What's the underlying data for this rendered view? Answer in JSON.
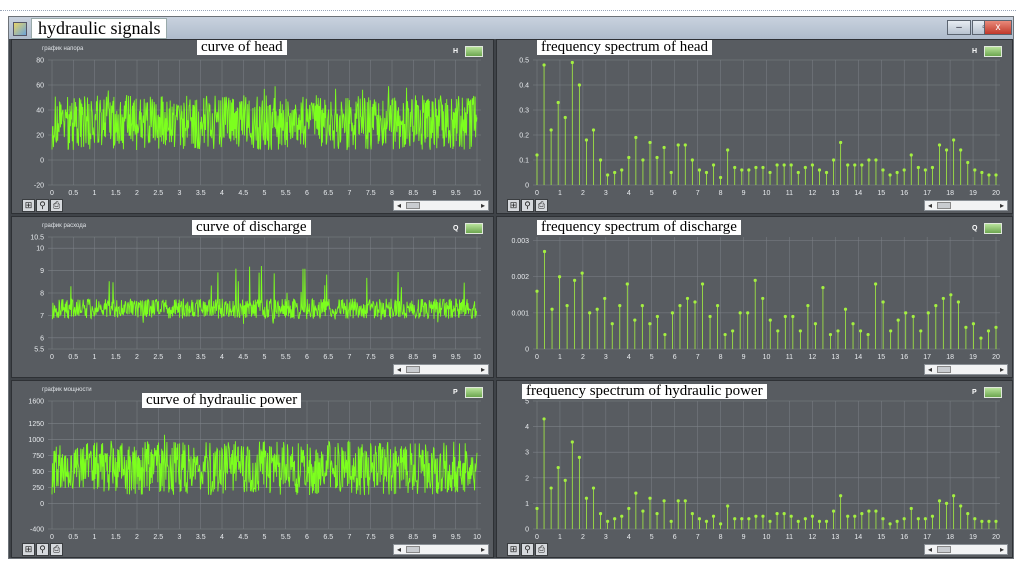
{
  "window": {
    "title": "hydraulic signals",
    "controls": [
      "–",
      "▫",
      "x"
    ]
  },
  "panels": [
    {
      "id": "head-curve",
      "overlay_title": "curve of head",
      "small_title": "график напора",
      "legend_symbol": "H",
      "kind": "signal",
      "y_ticks": [
        "80",
        "60",
        "40",
        "20",
        "0",
        "-20"
      ],
      "y_values": [
        80,
        60,
        40,
        20,
        0,
        -20
      ],
      "x_ticks": [
        "0",
        "0.5",
        "1",
        "1.5",
        "2",
        "2.5",
        "3",
        "3.5",
        "4",
        "4.5",
        "5",
        "5.5",
        "6",
        "6.5",
        "7",
        "7.5",
        "8",
        "8.5",
        "9",
        "9.5",
        "10"
      ],
      "signal": {
        "mean": 30,
        "amp": 22,
        "spike": 42,
        "min": -20,
        "max": 80
      },
      "has_toolbar": true
    },
    {
      "id": "head-spectrum",
      "overlay_title": "frequency spectrum of head",
      "small_title": "",
      "legend_symbol": "H",
      "kind": "spectrum",
      "y_ticks": [
        "0.5",
        "0.4",
        "0.3",
        "0.2",
        "0.1",
        "0"
      ],
      "y_values": [
        0.5,
        0.4,
        0.3,
        0.2,
        0.1,
        0
      ],
      "x_ticks": [
        "0",
        "1",
        "2",
        "3",
        "4",
        "5",
        "6",
        "7",
        "8",
        "9",
        "10",
        "11",
        "12",
        "13",
        "14",
        "15",
        "16",
        "17",
        "18",
        "19",
        "20"
      ],
      "stems": [
        0.12,
        0.48,
        0.22,
        0.33,
        0.27,
        0.49,
        0.4,
        0.18,
        0.22,
        0.1,
        0.04,
        0.05,
        0.06,
        0.11,
        0.19,
        0.1,
        0.17,
        0.11,
        0.15,
        0.05,
        0.16,
        0.16,
        0.1,
        0.06,
        0.05,
        0.08,
        0.03,
        0.14,
        0.07,
        0.06,
        0.06,
        0.07,
        0.07,
        0.05,
        0.08,
        0.08,
        0.08,
        0.05,
        0.07,
        0.08,
        0.06,
        0.05,
        0.1,
        0.17,
        0.08,
        0.08,
        0.08,
        0.1,
        0.1,
        0.06,
        0.04,
        0.05,
        0.06,
        0.12,
        0.07,
        0.06,
        0.07,
        0.16,
        0.14,
        0.18,
        0.14,
        0.09,
        0.06,
        0.05,
        0.04,
        0.04
      ],
      "ymax": 0.5,
      "has_toolbar": true
    },
    {
      "id": "discharge-curve",
      "overlay_title": "curve of discharge",
      "small_title": "график расхода",
      "legend_symbol": "Q",
      "kind": "signal",
      "y_ticks": [
        "10.5",
        "10",
        "9",
        "8",
        "7",
        "6",
        "5.5"
      ],
      "y_values": [
        10.5,
        10,
        9,
        8,
        7,
        6,
        5.5
      ],
      "x_ticks": [
        "0",
        "0.5",
        "1",
        "1.5",
        "2",
        "2.5",
        "3",
        "3.5",
        "4",
        "4.5",
        "5",
        "5.5",
        "6",
        "6.5",
        "7",
        "7.5",
        "8",
        "8.5",
        "9",
        "9.5",
        "10"
      ],
      "signal": {
        "mean": 7.3,
        "amp": 0.45,
        "spike": 2.8,
        "min": 5.5,
        "max": 10.5
      },
      "has_toolbar": false
    },
    {
      "id": "discharge-spectrum",
      "overlay_title": "frequency spectrum of discharge",
      "small_title": "",
      "legend_symbol": "Q",
      "kind": "spectrum",
      "y_ticks": [
        "0.003",
        "0.002",
        "0.001",
        "0"
      ],
      "y_values": [
        0.003,
        0.002,
        0.001,
        0
      ],
      "x_ticks": [
        "0",
        "1",
        "2",
        "3",
        "4",
        "5",
        "6",
        "7",
        "8",
        "9",
        "10",
        "11",
        "12",
        "13",
        "14",
        "15",
        "16",
        "17",
        "18",
        "19",
        "20"
      ],
      "stems": [
        0.0016,
        0.0027,
        0.0011,
        0.002,
        0.0012,
        0.0019,
        0.0021,
        0.001,
        0.0011,
        0.0014,
        0.0007,
        0.0012,
        0.0018,
        0.0008,
        0.0012,
        0.0007,
        0.0009,
        0.0004,
        0.001,
        0.0012,
        0.0014,
        0.0013,
        0.0018,
        0.0009,
        0.0012,
        0.0004,
        0.0005,
        0.001,
        0.001,
        0.0019,
        0.0014,
        0.0008,
        0.0005,
        0.0009,
        0.0009,
        0.0005,
        0.0012,
        0.0007,
        0.0017,
        0.0004,
        0.0005,
        0.0011,
        0.0007,
        0.0005,
        0.0004,
        0.0018,
        0.0013,
        0.0005,
        0.0008,
        0.001,
        0.0009,
        0.0005,
        0.001,
        0.0012,
        0.0014,
        0.0015,
        0.0013,
        0.0006,
        0.0007,
        0.0003,
        0.0005,
        0.0006
      ],
      "ymax": 0.0031,
      "has_toolbar": false
    },
    {
      "id": "power-curve",
      "overlay_title": "curve of hydraulic power",
      "small_title": "график мощности",
      "legend_symbol": "P",
      "kind": "signal",
      "y_ticks": [
        "1600",
        "1250",
        "1000",
        "750",
        "500",
        "250",
        "0",
        "-400"
      ],
      "y_values": [
        1600,
        1250,
        1000,
        750,
        500,
        250,
        0,
        -400
      ],
      "x_ticks": [
        "0",
        "0.5",
        "1",
        "1.5",
        "2",
        "2.5",
        "3",
        "3.5",
        "4",
        "4.5",
        "5",
        "5.5",
        "6",
        "6.5",
        "7",
        "7.5",
        "8",
        "8.5",
        "9",
        "9.5",
        "10"
      ],
      "signal": {
        "mean": 550,
        "amp": 420,
        "spike": 750,
        "min": -400,
        "max": 1600
      },
      "has_toolbar": true
    },
    {
      "id": "power-spectrum",
      "overlay_title": "frequency spectrum of hydraulic power",
      "small_title": "",
      "legend_symbol": "P",
      "kind": "spectrum",
      "y_ticks": [
        "5",
        "4",
        "3",
        "2",
        "1",
        "0"
      ],
      "y_values": [
        5,
        4,
        3,
        2,
        1,
        0
      ],
      "x_ticks": [
        "0",
        "1",
        "2",
        "3",
        "4",
        "5",
        "6",
        "7",
        "8",
        "9",
        "10",
        "11",
        "12",
        "13",
        "14",
        "15",
        "16",
        "17",
        "18",
        "19",
        "20"
      ],
      "stems": [
        0.8,
        4.3,
        1.6,
        2.4,
        1.9,
        3.4,
        2.8,
        1.2,
        1.6,
        0.6,
        0.3,
        0.4,
        0.5,
        0.8,
        1.4,
        0.7,
        1.2,
        0.6,
        1.1,
        0.3,
        1.1,
        1.1,
        0.6,
        0.4,
        0.3,
        0.5,
        0.2,
        0.9,
        0.4,
        0.4,
        0.4,
        0.5,
        0.5,
        0.3,
        0.6,
        0.6,
        0.5,
        0.3,
        0.4,
        0.5,
        0.3,
        0.3,
        0.7,
        1.3,
        0.5,
        0.5,
        0.6,
        0.7,
        0.7,
        0.4,
        0.2,
        0.3,
        0.4,
        0.8,
        0.4,
        0.4,
        0.5,
        1.1,
        1.0,
        1.3,
        0.9,
        0.6,
        0.4,
        0.3,
        0.3,
        0.3
      ],
      "ymax": 5,
      "has_toolbar": true
    }
  ],
  "colors": {
    "signal": "#7cff1e",
    "stem": "#a4f040",
    "plot_bg": "#585c61",
    "grid": "#7c8187"
  },
  "toolbar_icons": [
    "grid-icon",
    "zoom-icon",
    "print-icon"
  ]
}
